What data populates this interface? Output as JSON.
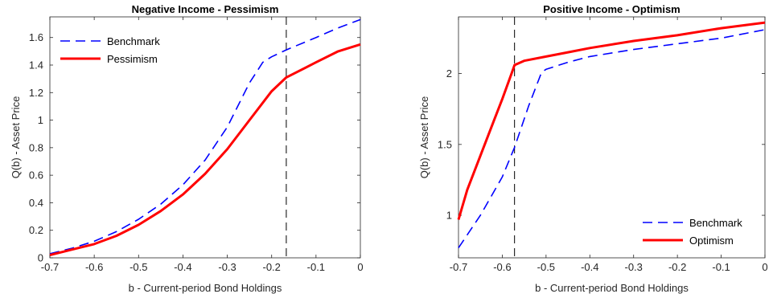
{
  "chart_data": [
    {
      "type": "line",
      "title": "Negative Income - Pessimism",
      "xlabel": "b - Current-period Bond Holdings",
      "ylabel": "Q(b) - Asset Price",
      "xlim": [
        -0.7,
        0
      ],
      "ylim": [
        0,
        1.75
      ],
      "xticks": [
        -0.7,
        -0.6,
        -0.5,
        -0.4,
        -0.3,
        -0.2,
        -0.1,
        0
      ],
      "xtick_labels": [
        "-0.7",
        "-0.6",
        "-0.5",
        "-0.4",
        "-0.3",
        "-0.2",
        "-0.1",
        "0"
      ],
      "yticks": [
        0,
        0.2,
        0.4,
        0.6,
        0.8,
        1,
        1.2,
        1.4,
        1.6
      ],
      "ytick_labels": [
        "0",
        "0.2",
        "0.4",
        "0.6",
        "0.8",
        "1",
        "1.2",
        "1.4",
        "1.6"
      ],
      "vline_x": -0.167,
      "legend_position": "top-left",
      "grid": false,
      "series": [
        {
          "name": "Benchmark",
          "style": "dashed",
          "color": "#0000ff",
          "x": [
            -0.7,
            -0.65,
            -0.6,
            -0.55,
            -0.5,
            -0.45,
            -0.4,
            -0.35,
            -0.3,
            -0.25,
            -0.22,
            -0.2,
            -0.167,
            -0.1,
            -0.05,
            0
          ],
          "y": [
            0.03,
            0.07,
            0.12,
            0.19,
            0.28,
            0.39,
            0.53,
            0.71,
            0.95,
            1.27,
            1.42,
            1.46,
            1.51,
            1.6,
            1.67,
            1.73
          ]
        },
        {
          "name": "Pessimism",
          "style": "solid",
          "color": "#ff0000",
          "x": [
            -0.7,
            -0.65,
            -0.6,
            -0.55,
            -0.5,
            -0.45,
            -0.4,
            -0.35,
            -0.3,
            -0.25,
            -0.2,
            -0.167,
            -0.1,
            -0.05,
            0
          ],
          "y": [
            0.02,
            0.06,
            0.1,
            0.16,
            0.24,
            0.34,
            0.46,
            0.61,
            0.79,
            1.0,
            1.21,
            1.31,
            1.42,
            1.5,
            1.55
          ]
        }
      ]
    },
    {
      "type": "line",
      "title": "Positive Income - Optimism",
      "xlabel": "b - Current-period Bond Holdings",
      "ylabel": "Q(b) - Asset Price",
      "xlim": [
        -0.7,
        0
      ],
      "ylim": [
        0.7,
        2.4
      ],
      "xticks": [
        -0.7,
        -0.6,
        -0.5,
        -0.4,
        -0.3,
        -0.2,
        -0.1,
        0
      ],
      "xtick_labels": [
        "-0.7",
        "-0.6",
        "-0.5",
        "-0.4",
        "-0.3",
        "-0.2",
        "-0.1",
        "0"
      ],
      "yticks": [
        1,
        1.5,
        2
      ],
      "ytick_labels": [
        "1",
        "1.5",
        "2"
      ],
      "vline_x": -0.572,
      "legend_position": "bottom-right",
      "grid": false,
      "series": [
        {
          "name": "Benchmark",
          "style": "dashed",
          "color": "#0000ff",
          "x": [
            -0.7,
            -0.65,
            -0.6,
            -0.572,
            -0.54,
            -0.51,
            -0.5,
            -0.45,
            -0.4,
            -0.3,
            -0.2,
            -0.1,
            0
          ],
          "y": [
            0.77,
            1.0,
            1.27,
            1.48,
            1.77,
            2.01,
            2.03,
            2.08,
            2.12,
            2.17,
            2.21,
            2.25,
            2.31
          ]
        },
        {
          "name": "Optimism",
          "style": "solid",
          "color": "#ff0000",
          "x": [
            -0.7,
            -0.68,
            -0.65,
            -0.62,
            -0.6,
            -0.58,
            -0.572,
            -0.55,
            -0.5,
            -0.45,
            -0.4,
            -0.3,
            -0.2,
            -0.1,
            0
          ],
          "y": [
            0.97,
            1.18,
            1.42,
            1.66,
            1.82,
            1.99,
            2.06,
            2.09,
            2.12,
            2.15,
            2.18,
            2.23,
            2.27,
            2.32,
            2.36
          ]
        }
      ]
    }
  ]
}
